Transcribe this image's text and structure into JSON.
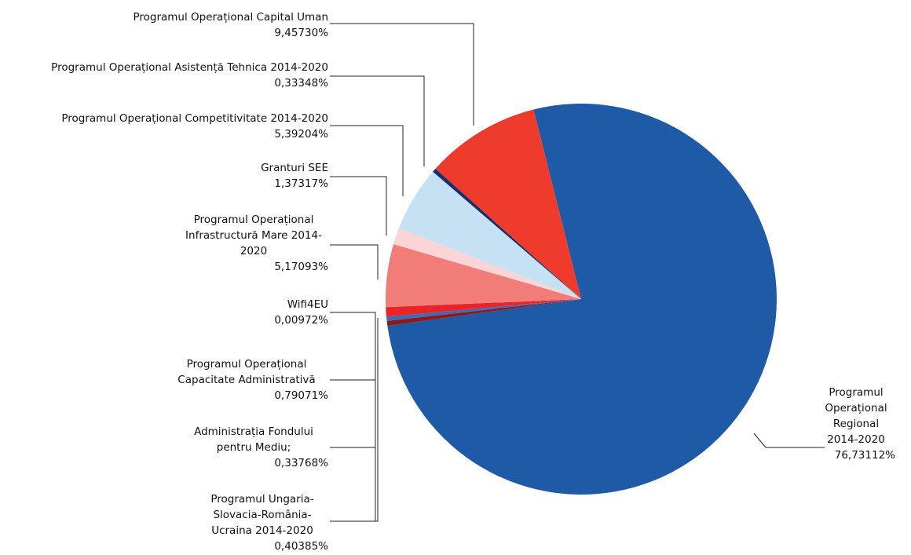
{
  "chart_data": {
    "type": "pie",
    "categories": [
      "Programul Operațional Regional 2014-2020",
      "Programul Ungaria-Slovacia-România-Ucraina 2014-2020",
      "Administrația Fondului pentru Mediu;",
      "Programul Operațional Capacitate Administrativă",
      "Wifi4EU",
      "Programul Operațional Infrastructură Mare 2014-2020",
      "Granturi SEE",
      "Programul Operațional Competitivitate 2014-2020",
      "Programul Operațional Asistență Tehnica 2014-2020",
      "Programul Operațional Capital Uman"
    ],
    "values": [
      76.73112,
      0.40385,
      0.33768,
      0.79071,
      0.00972,
      5.17093,
      1.37317,
      5.39204,
      0.33348,
      9.4573
    ],
    "value_labels": [
      "76,73112%",
      "0,40385%",
      "0,33768%",
      "0,79071%",
      "0,00972%",
      "5,17093%",
      "1,37317%",
      "5,39204%",
      "0,33348%",
      "9,45730%"
    ],
    "colors": [
      "#1f5aa6",
      "#8b1a1f",
      "#3c6db4",
      "#e8232a",
      "#f4a0a0",
      "#f27d78",
      "#fbd5d5",
      "#c5e1f3",
      "#1b2d6b",
      "#ee3b2b"
    ]
  }
}
